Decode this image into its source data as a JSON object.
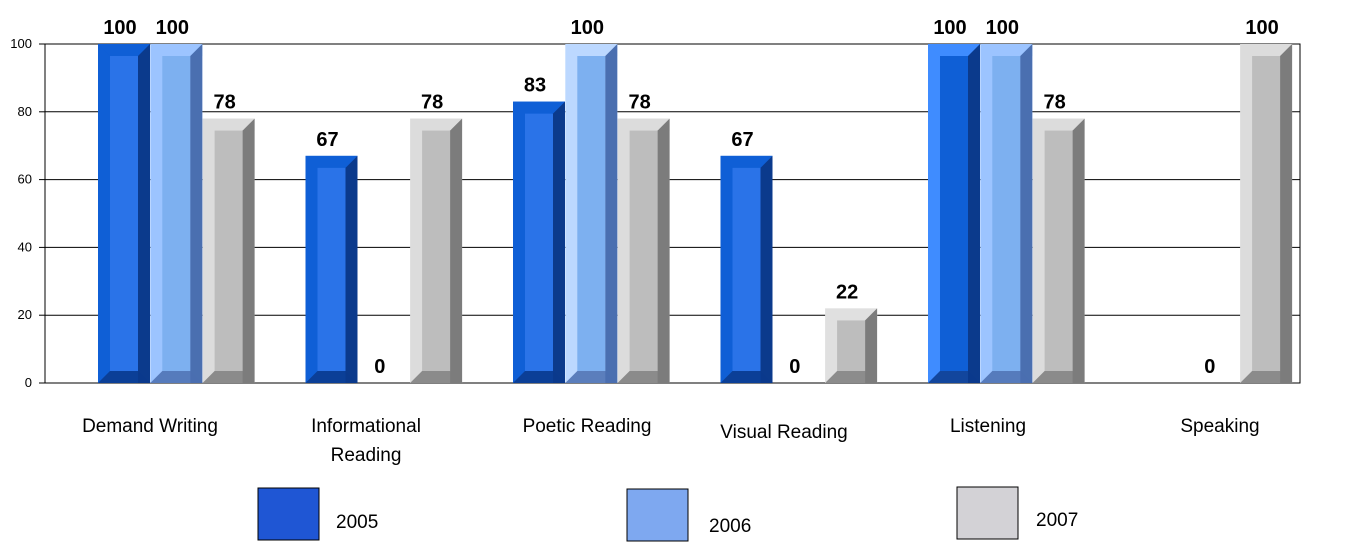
{
  "chart_data": {
    "type": "bar",
    "title": "",
    "xlabel": "",
    "ylabel": "",
    "ylim": [
      0,
      100
    ],
    "yticks": [
      0,
      20,
      40,
      60,
      80,
      100
    ],
    "grid": true,
    "legend_position": "bottom",
    "categories": [
      [
        "Demand Writing"
      ],
      [
        "Informational",
        "Reading"
      ],
      [
        "Poetic Reading"
      ],
      [
        "Visual Reading"
      ],
      [
        "Listening"
      ],
      [
        "Speaking"
      ]
    ],
    "series": [
      {
        "name": "2005",
        "values": [
          100,
          67,
          83,
          67,
          100,
          null
        ],
        "labels": [
          "100",
          "67",
          "83",
          "67",
          "100",
          ""
        ]
      },
      {
        "name": "2006",
        "values": [
          100,
          0,
          100,
          0,
          100,
          0
        ],
        "labels": [
          "100",
          "0",
          "100",
          "0",
          "100",
          "0"
        ]
      },
      {
        "name": "2007",
        "values": [
          78,
          78,
          78,
          22,
          78,
          100
        ],
        "labels": [
          "78",
          "78",
          "78",
          "22",
          "78",
          "100"
        ]
      }
    ],
    "bar_colors": [
      [
        "#0f5fd6",
        "#2a73e8",
        "#0b3a8c"
      ],
      [
        "#3f8cff",
        "#8fb8f5",
        "#4a6fb0"
      ],
      [
        "#dcdcdc",
        "#bdbdbd",
        "#7c7c7c"
      ],
      [
        "#1f56d4",
        "#7ea8f0",
        "#d8d8d8"
      ]
    ],
    "legend_colors": [
      "#1f56d4",
      "#7ea8f0",
      "#d3d2d6"
    ]
  }
}
